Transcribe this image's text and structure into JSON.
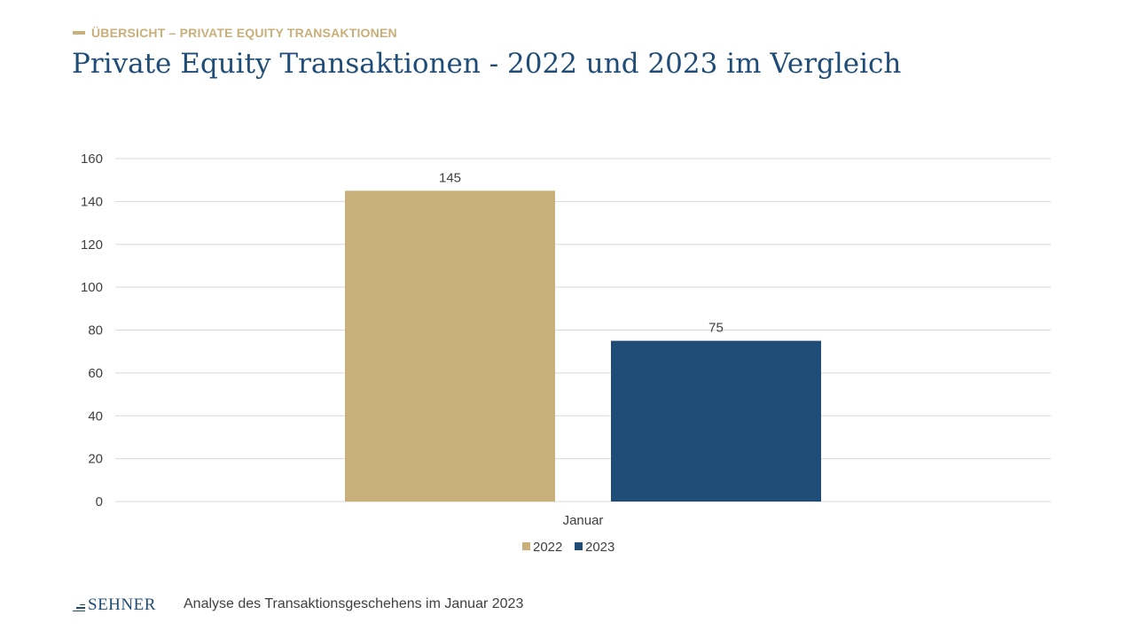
{
  "header": {
    "kicker": "ÜBERSICHT – PRIVATE EQUITY TRANSAKTIONEN",
    "title": "Private Equity Transaktionen - 2022 und 2023 im Vergleich"
  },
  "footer": {
    "logo_text": "SEHNER",
    "caption": "Analyse des Transaktionsgeschehens im Januar 2023"
  },
  "colors": {
    "gold": "#C9AF79",
    "navy": "#204D78",
    "text": "#404040",
    "grid": "#D9D9D9"
  },
  "chart_data": {
    "type": "bar",
    "categories": [
      "Januar"
    ],
    "series": [
      {
        "name": "2022",
        "values": [
          145
        ],
        "color": "#C9AF79"
      },
      {
        "name": "2023",
        "values": [
          75
        ],
        "color": "#204D78"
      }
    ],
    "yticks": [
      0,
      20,
      40,
      60,
      80,
      100,
      120,
      140,
      160
    ],
    "ylim": [
      0,
      160
    ],
    "grid": true,
    "legend": "bottom",
    "data_labels": true
  }
}
